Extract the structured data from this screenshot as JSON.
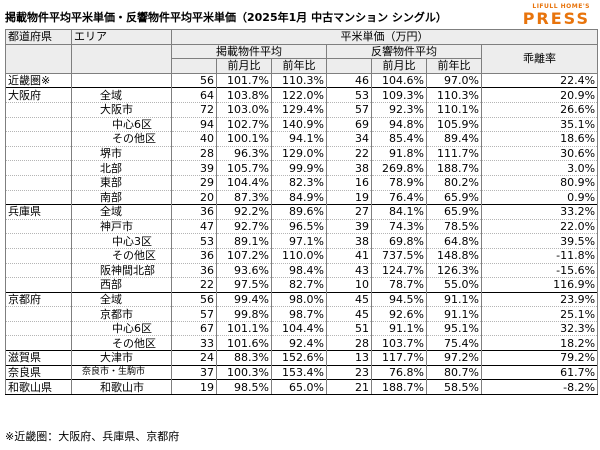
{
  "title": "掲載物件平均平米単価・反響物件平均平米単価（2025年1月 中古マンション シングル）",
  "logo": {
    "top": "LIFULL HOME'S",
    "main": "PRESS"
  },
  "header": {
    "pref": "都道府県",
    "area": "エリア",
    "unit": "平米単価（万円）",
    "listing": "掲載物件平均",
    "response": "反響物件平均",
    "divergence": "乖離率",
    "mom": "前月比",
    "yoy": "前年比"
  },
  "rows": [
    {
      "pref": "近畿圏※",
      "area": "",
      "l": "56",
      "lm": "101.7%",
      "ly": "110.3%",
      "r": "46",
      "rm": "104.6%",
      "ry": "97.0%",
      "d": "22.4%",
      "grp": true
    },
    {
      "pref": "大阪府",
      "area": "全域",
      "l": "64",
      "lm": "103.8%",
      "ly": "122.0%",
      "r": "53",
      "rm": "109.3%",
      "ry": "110.3%",
      "d": "20.9%",
      "grp": true
    },
    {
      "pref": "",
      "area": "大阪市",
      "l": "72",
      "lm": "103.0%",
      "ly": "129.4%",
      "r": "57",
      "rm": "92.3%",
      "ry": "110.1%",
      "d": "26.6%",
      "lvl": 1
    },
    {
      "pref": "",
      "area": "中心6区",
      "l": "94",
      "lm": "102.7%",
      "ly": "140.9%",
      "r": "69",
      "rm": "94.8%",
      "ry": "105.9%",
      "d": "35.1%",
      "lvl": 2
    },
    {
      "pref": "",
      "area": "その他区",
      "l": "40",
      "lm": "100.1%",
      "ly": "94.1%",
      "r": "34",
      "rm": "85.4%",
      "ry": "89.4%",
      "d": "18.6%",
      "lvl": 2
    },
    {
      "pref": "",
      "area": "堺市",
      "l": "28",
      "lm": "96.3%",
      "ly": "129.0%",
      "r": "22",
      "rm": "91.8%",
      "ry": "111.7%",
      "d": "30.6%",
      "lvl": 1
    },
    {
      "pref": "",
      "area": "北部",
      "l": "39",
      "lm": "105.7%",
      "ly": "99.9%",
      "r": "38",
      "rm": "269.8%",
      "ry": "188.7%",
      "d": "3.0%",
      "lvl": 1
    },
    {
      "pref": "",
      "area": "東部",
      "l": "29",
      "lm": "104.4%",
      "ly": "82.3%",
      "r": "16",
      "rm": "78.9%",
      "ry": "80.2%",
      "d": "80.9%",
      "lvl": 1
    },
    {
      "pref": "",
      "area": "南部",
      "l": "20",
      "lm": "87.3%",
      "ly": "84.9%",
      "r": "19",
      "rm": "76.4%",
      "ry": "65.9%",
      "d": "0.9%",
      "lvl": 1
    },
    {
      "pref": "兵庫県",
      "area": "全域",
      "l": "36",
      "lm": "92.2%",
      "ly": "89.6%",
      "r": "27",
      "rm": "84.1%",
      "ry": "65.9%",
      "d": "33.2%",
      "grp": true
    },
    {
      "pref": "",
      "area": "神戸市",
      "l": "47",
      "lm": "92.7%",
      "ly": "96.5%",
      "r": "39",
      "rm": "74.3%",
      "ry": "78.5%",
      "d": "22.0%",
      "lvl": 1
    },
    {
      "pref": "",
      "area": "中心3区",
      "l": "53",
      "lm": "89.1%",
      "ly": "97.1%",
      "r": "38",
      "rm": "69.8%",
      "ry": "64.8%",
      "d": "39.5%",
      "lvl": 2
    },
    {
      "pref": "",
      "area": "その他区",
      "l": "36",
      "lm": "107.2%",
      "ly": "110.0%",
      "r": "41",
      "rm": "737.5%",
      "ry": "148.8%",
      "d": "-11.8%",
      "lvl": 2
    },
    {
      "pref": "",
      "area": "阪神間北部",
      "l": "36",
      "lm": "93.6%",
      "ly": "98.4%",
      "r": "43",
      "rm": "124.7%",
      "ry": "126.3%",
      "d": "-15.6%",
      "lvl": 1
    },
    {
      "pref": "",
      "area": "西部",
      "l": "22",
      "lm": "97.5%",
      "ly": "82.7%",
      "r": "10",
      "rm": "78.7%",
      "ry": "55.0%",
      "d": "116.9%",
      "lvl": 1
    },
    {
      "pref": "京都府",
      "area": "全域",
      "l": "56",
      "lm": "99.4%",
      "ly": "98.0%",
      "r": "45",
      "rm": "94.5%",
      "ry": "91.1%",
      "d": "23.9%",
      "grp": true
    },
    {
      "pref": "",
      "area": "京都市",
      "l": "57",
      "lm": "99.8%",
      "ly": "98.7%",
      "r": "45",
      "rm": "92.6%",
      "ry": "91.1%",
      "d": "25.1%",
      "lvl": 1
    },
    {
      "pref": "",
      "area": "中心6区",
      "l": "67",
      "lm": "101.1%",
      "ly": "104.4%",
      "r": "51",
      "rm": "91.1%",
      "ry": "95.1%",
      "d": "32.3%",
      "lvl": 2
    },
    {
      "pref": "",
      "area": "その他区",
      "l": "33",
      "lm": "101.6%",
      "ly": "92.4%",
      "r": "28",
      "rm": "103.7%",
      "ry": "75.4%",
      "d": "18.2%",
      "lvl": 2
    },
    {
      "pref": "滋賀県",
      "area": "大津市",
      "l": "24",
      "lm": "88.3%",
      "ly": "152.6%",
      "r": "13",
      "rm": "117.7%",
      "ry": "97.2%",
      "d": "79.2%",
      "grp": true,
      "lvl": 1
    },
    {
      "pref": "奈良県",
      "area": "奈良市・生駒市",
      "l": "37",
      "lm": "100.3%",
      "ly": "153.4%",
      "r": "23",
      "rm": "76.8%",
      "ry": "80.7%",
      "d": "61.7%",
      "grp": true,
      "small": true
    },
    {
      "pref": "和歌山県",
      "area": "和歌山市",
      "l": "19",
      "lm": "98.5%",
      "ly": "65.0%",
      "r": "21",
      "rm": "188.7%",
      "ry": "58.5%",
      "d": "-8.2%",
      "grp": true,
      "lvl": 1,
      "last": true
    }
  ],
  "note": "※近畿圏：大阪府、兵庫県、京都府"
}
